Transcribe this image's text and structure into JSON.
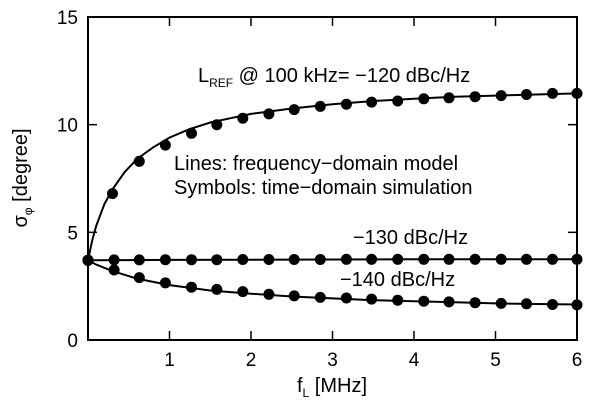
{
  "chart_data": {
    "type": "line",
    "title": "",
    "xlabel": {
      "main": "f",
      "sub": "L",
      "unit": "[MHz]"
    },
    "ylabel": {
      "main": "σ",
      "sub": "φ",
      "unit": "[degree]"
    },
    "xlim": [
      0,
      6
    ],
    "ylim": [
      0,
      15
    ],
    "x_ticks": [
      "1",
      "2",
      "3",
      "4",
      "5",
      "6"
    ],
    "y_ticks": [
      "0",
      "5",
      "10",
      "15"
    ],
    "grid": false,
    "legend": "none",
    "annotations": {
      "ref": {
        "main": "L",
        "sub": "REF",
        "rest": " @ 100 kHz= −120 dBc/Hz"
      },
      "lines_note": "Lines: frequency−domain model",
      "symbols_note": "Symbols: time−domain simulation",
      "mid": "−130 dBc/Hz",
      "low": "−140 dBc/Hz"
    },
    "series": [
      {
        "line_x": [
          0,
          0.05,
          0.1,
          0.2,
          0.3,
          0.45,
          0.6,
          0.8,
          1.0,
          1.25,
          1.5,
          1.75,
          2.0,
          2.5,
          3.0,
          3.5,
          4.0,
          4.5,
          5.0,
          5.5,
          6.0
        ],
        "line_y": [
          3.7,
          4.6,
          5.3,
          6.3,
          7.0,
          7.8,
          8.4,
          8.95,
          9.4,
          9.8,
          10.1,
          10.3,
          10.5,
          10.75,
          10.95,
          11.1,
          11.2,
          11.3,
          11.35,
          11.4,
          11.45
        ],
        "points_x": [
          0,
          0.3,
          0.63,
          0.95,
          1.27,
          1.58,
          1.9,
          2.22,
          2.53,
          2.85,
          3.17,
          3.48,
          3.8,
          4.12,
          4.43,
          4.75,
          5.07,
          5.38,
          5.7,
          6.0
        ],
        "points_y": [
          3.7,
          6.8,
          8.3,
          9.05,
          9.6,
          10.0,
          10.3,
          10.5,
          10.7,
          10.85,
          10.95,
          11.05,
          11.1,
          11.2,
          11.25,
          11.3,
          11.35,
          11.4,
          11.45,
          11.45
        ]
      },
      {
        "line_x": [
          0,
          1.0,
          2.0,
          3.0,
          4.0,
          5.0,
          6.0
        ],
        "line_y": [
          3.7,
          3.72,
          3.73,
          3.74,
          3.75,
          3.75,
          3.75
        ],
        "points_x": [
          0,
          0.32,
          0.63,
          0.95,
          1.27,
          1.58,
          1.9,
          2.22,
          2.53,
          2.85,
          3.17,
          3.48,
          3.8,
          4.12,
          4.43,
          4.75,
          5.07,
          5.38,
          5.7,
          6.0
        ],
        "points_y": [
          3.7,
          3.72,
          3.72,
          3.73,
          3.73,
          3.73,
          3.74,
          3.74,
          3.74,
          3.74,
          3.75,
          3.75,
          3.75,
          3.75,
          3.75,
          3.75,
          3.75,
          3.75,
          3.75,
          3.75
        ]
      },
      {
        "line_x": [
          0,
          0.1,
          0.3,
          0.6,
          1.0,
          1.5,
          2.0,
          2.5,
          3.0,
          3.5,
          4.0,
          4.5,
          5.0,
          5.5,
          6.0
        ],
        "line_y": [
          3.7,
          3.5,
          3.2,
          2.85,
          2.55,
          2.3,
          2.15,
          2.02,
          1.93,
          1.85,
          1.8,
          1.75,
          1.7,
          1.67,
          1.65
        ],
        "points_x": [
          0,
          0.32,
          0.63,
          0.95,
          1.27,
          1.58,
          1.9,
          2.22,
          2.53,
          2.85,
          3.17,
          3.48,
          3.8,
          4.12,
          4.43,
          4.75,
          5.07,
          5.38,
          5.7,
          6.0
        ],
        "points_y": [
          3.7,
          3.25,
          2.9,
          2.65,
          2.45,
          2.35,
          2.25,
          2.12,
          2.05,
          1.98,
          1.95,
          1.9,
          1.85,
          1.8,
          1.77,
          1.73,
          1.7,
          1.68,
          1.65,
          1.63
        ]
      }
    ]
  }
}
